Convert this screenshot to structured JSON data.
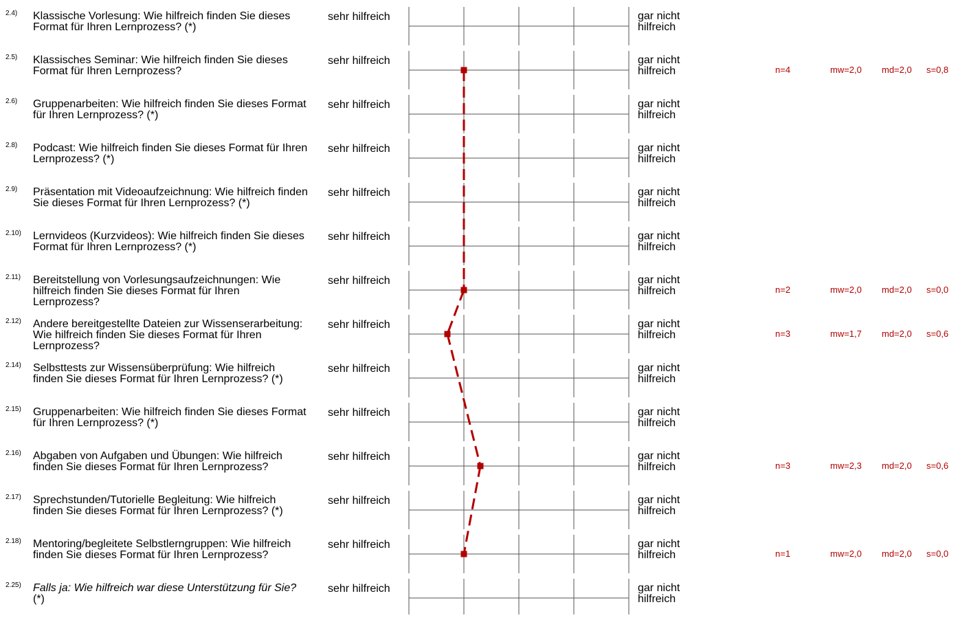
{
  "chart_data": {
    "type": "line",
    "scale": {
      "left_label": "sehr hilfreich",
      "right_label": "gar nicht hilfreich",
      "xlim": [
        1,
        5
      ]
    },
    "line_color": "#b20000",
    "items": [
      {
        "id": "2.4)",
        "question": "Klassische Vorlesung: Wie hilfreich finden Sie dieses Format für Ihren Lernprozess? (*)",
        "italic": "",
        "suffix": "",
        "value": null,
        "n": "",
        "mw": "",
        "md": "",
        "s": ""
      },
      {
        "id": "2.5)",
        "question": "Klassisches Seminar: Wie hilfreich finden Sie dieses Format für Ihren Lernprozess?",
        "italic": "",
        "suffix": "",
        "value": 2.0,
        "n": "n=4",
        "mw": "mw=2,0",
        "md": "md=2,0",
        "s": "s=0,8"
      },
      {
        "id": "2.6)",
        "question": "Gruppenarbeiten: Wie hilfreich finden Sie dieses Format für Ihren Lernprozess? (*)",
        "italic": "",
        "suffix": "",
        "value": null,
        "n": "",
        "mw": "",
        "md": "",
        "s": ""
      },
      {
        "id": "2.8)",
        "question": "Podcast: Wie hilfreich finden Sie dieses Format für Ihren Lernprozess? (*)",
        "italic": "",
        "suffix": "",
        "value": null,
        "n": "",
        "mw": "",
        "md": "",
        "s": ""
      },
      {
        "id": "2.9)",
        "question": "Präsentation mit Videoaufzeichnung: Wie hilfreich finden Sie dieses Format für Ihren Lernprozess? (*)",
        "italic": "",
        "suffix": "",
        "value": null,
        "n": "",
        "mw": "",
        "md": "",
        "s": ""
      },
      {
        "id": "2.10)",
        "question": "Lernvideos (Kurzvideos): Wie hilfreich finden Sie dieses Format für Ihren Lernprozess? (*)",
        "italic": "",
        "suffix": "",
        "value": null,
        "n": "",
        "mw": "",
        "md": "",
        "s": ""
      },
      {
        "id": "2.11)",
        "question": "Bereitstellung von Vorlesungsaufzeichnungen: Wie hilfreich finden Sie dieses Format für Ihren Lernprozess?",
        "italic": "",
        "suffix": "",
        "value": 2.0,
        "n": "n=2",
        "mw": "mw=2,0",
        "md": "md=2,0",
        "s": "s=0,0"
      },
      {
        "id": "2.12)",
        "question": "Andere bereitgestellte Dateien zur Wissenserarbeitung: Wie hilfreich finden Sie dieses Format für Ihren Lernprozess?",
        "italic": "",
        "suffix": "",
        "value": 1.7,
        "n": "n=3",
        "mw": "mw=1,7",
        "md": "md=2,0",
        "s": "s=0,6"
      },
      {
        "id": "2.14)",
        "question": "Selbsttests zur Wissensüberprüfung: Wie hilfreich finden Sie dieses Format für Ihren Lernprozess? (*)",
        "italic": "",
        "suffix": "",
        "value": null,
        "n": "",
        "mw": "",
        "md": "",
        "s": ""
      },
      {
        "id": "2.15)",
        "question": "Gruppenarbeiten: Wie hilfreich finden Sie dieses Format für Ihren Lernprozess? (*)",
        "italic": "",
        "suffix": "",
        "value": null,
        "n": "",
        "mw": "",
        "md": "",
        "s": ""
      },
      {
        "id": "2.16)",
        "question": "Abgaben von Aufgaben und Übungen: Wie hilfreich finden Sie dieses Format für Ihren Lernprozess?",
        "italic": "",
        "suffix": "",
        "value": 2.3,
        "n": "n=3",
        "mw": "mw=2,3",
        "md": "md=2,0",
        "s": "s=0,6"
      },
      {
        "id": "2.17)",
        "question": "Sprechstunden/Tutorielle Begleitung: Wie hilfreich finden Sie dieses Format für Ihren Lernprozess? (*)",
        "italic": "",
        "suffix": "",
        "value": null,
        "n": "",
        "mw": "",
        "md": "",
        "s": ""
      },
      {
        "id": "2.18)",
        "question": "Mentoring/begleitete Selbstlerngruppen: Wie hilfreich finden Sie dieses Format für Ihren Lernprozess?",
        "italic": "",
        "suffix": "",
        "value": 2.0,
        "n": "n=1",
        "mw": "mw=2,0",
        "md": "md=2,0",
        "s": "s=0,0"
      },
      {
        "id": "2.25)",
        "question": "",
        "italic": "Falls ja: Wie hilfreich war diese Unterstützung für Sie?",
        "suffix": " (*)",
        "value": null,
        "n": "",
        "mw": "",
        "md": "",
        "s": ""
      }
    ]
  }
}
